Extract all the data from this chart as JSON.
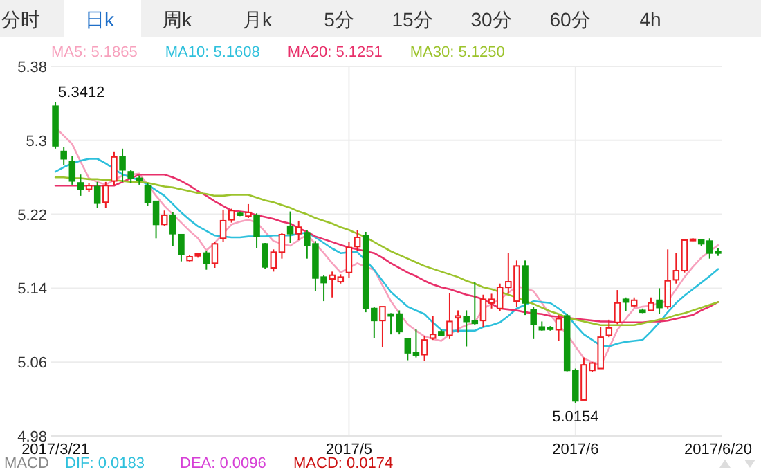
{
  "chart_data": {
    "type": "candlestick",
    "categories": [
      "2017/3/21",
      null,
      null,
      null,
      null,
      null,
      null,
      null,
      null,
      null,
      null,
      null,
      null,
      null,
      null,
      null,
      null,
      null,
      null,
      null,
      null,
      null,
      null,
      null,
      null,
      null,
      null,
      null,
      null,
      null,
      null,
      null,
      null,
      null,
      null,
      "2017/5",
      null,
      null,
      null,
      null,
      null,
      null,
      null,
      null,
      null,
      null,
      null,
      null,
      null,
      null,
      null,
      null,
      null,
      null,
      null,
      null,
      null,
      null,
      null,
      null,
      null,
      null,
      "2017/6",
      null,
      null,
      null,
      null,
      null,
      null,
      null,
      null,
      null,
      null,
      null,
      null,
      null,
      null,
      null,
      null,
      "2017/6/20"
    ],
    "ohlc": [
      [
        5.337,
        5.3412,
        5.291,
        5.294
      ],
      [
        5.288,
        5.293,
        5.273,
        5.28
      ],
      [
        5.277,
        5.283,
        5.252,
        5.256
      ],
      [
        5.254,
        5.263,
        5.24,
        5.247
      ],
      [
        5.247,
        5.254,
        5.244,
        5.251
      ],
      [
        5.25,
        5.255,
        5.227,
        5.232
      ],
      [
        5.233,
        5.255,
        5.227,
        5.251
      ],
      [
        5.256,
        5.288,
        5.251,
        5.282
      ],
      [
        5.282,
        5.291,
        5.255,
        5.268
      ],
      [
        5.266,
        5.268,
        5.254,
        5.259
      ],
      [
        5.259,
        5.262,
        5.252,
        5.257
      ],
      [
        5.251,
        5.254,
        5.229,
        5.233
      ],
      [
        5.234,
        5.234,
        5.194,
        5.209
      ],
      [
        5.209,
        5.224,
        5.207,
        5.219
      ],
      [
        5.219,
        5.222,
        5.186,
        5.199
      ],
      [
        5.198,
        5.198,
        5.169,
        5.177
      ],
      [
        5.17,
        5.176,
        5.169,
        5.174
      ],
      [
        5.175,
        5.178,
        5.173,
        5.177
      ],
      [
        5.178,
        5.18,
        5.16,
        5.167
      ],
      [
        5.167,
        5.19,
        5.162,
        5.188
      ],
      [
        5.194,
        5.225,
        5.19,
        5.213
      ],
      [
        5.214,
        5.226,
        5.211,
        5.224
      ],
      [
        5.221,
        5.223,
        5.218,
        5.219
      ],
      [
        5.218,
        5.231,
        5.216,
        5.222
      ],
      [
        5.219,
        5.221,
        5.183,
        5.196
      ],
      [
        5.188,
        5.189,
        5.161,
        5.163
      ],
      [
        5.162,
        5.182,
        5.158,
        5.179
      ],
      [
        5.179,
        5.2,
        5.172,
        5.198
      ],
      [
        5.207,
        5.223,
        5.189,
        5.199
      ],
      [
        5.199,
        5.213,
        5.192,
        5.206
      ],
      [
        5.2,
        5.203,
        5.172,
        5.186
      ],
      [
        5.188,
        5.191,
        5.137,
        5.151
      ],
      [
        5.152,
        5.154,
        5.126,
        5.146
      ],
      [
        5.15,
        5.158,
        5.13,
        5.154
      ],
      [
        5.147,
        5.155,
        5.145,
        5.152
      ],
      [
        5.157,
        5.19,
        5.151,
        5.184
      ],
      [
        5.185,
        5.203,
        5.18,
        5.195
      ],
      [
        5.197,
        5.201,
        5.114,
        5.118
      ],
      [
        5.118,
        5.12,
        5.086,
        5.105
      ],
      [
        5.105,
        5.12,
        5.076,
        5.12
      ],
      [
        5.112,
        5.113,
        5.09,
        5.11
      ],
      [
        5.112,
        5.116,
        5.09,
        5.093
      ],
      [
        5.085,
        5.085,
        5.062,
        5.07
      ],
      [
        5.07,
        5.096,
        5.065,
        5.067
      ],
      [
        5.068,
        5.088,
        5.061,
        5.084
      ],
      [
        5.086,
        5.11,
        5.084,
        5.09
      ],
      [
        5.093,
        5.095,
        5.088,
        5.089
      ],
      [
        5.089,
        5.135,
        5.085,
        5.104
      ],
      [
        5.108,
        5.116,
        5.092,
        5.11
      ],
      [
        5.109,
        5.116,
        5.077,
        5.104
      ],
      [
        5.105,
        5.147,
        5.1,
        5.102
      ],
      [
        5.105,
        5.133,
        5.098,
        5.128
      ],
      [
        5.124,
        5.134,
        5.118,
        5.128
      ],
      [
        5.118,
        5.145,
        5.115,
        5.141
      ],
      [
        5.141,
        5.178,
        5.134,
        5.147
      ],
      [
        5.126,
        5.17,
        5.12,
        5.164
      ],
      [
        5.164,
        5.17,
        5.111,
        5.124
      ],
      [
        5.117,
        5.12,
        5.085,
        5.101
      ],
      [
        5.098,
        5.104,
        5.094,
        5.095
      ],
      [
        5.097,
        5.099,
        5.094,
        5.096
      ],
      [
        5.095,
        5.111,
        5.083,
        5.107
      ],
      [
        5.11,
        5.112,
        5.05,
        5.051
      ],
      [
        5.051,
        5.053,
        5.0154,
        5.018
      ],
      [
        5.019,
        5.065,
        5.019,
        5.057
      ],
      [
        5.051,
        5.06,
        5.049,
        5.059
      ],
      [
        5.053,
        5.098,
        5.053,
        5.087
      ],
      [
        5.089,
        5.106,
        5.087,
        5.097
      ],
      [
        5.103,
        5.138,
        5.101,
        5.124
      ],
      [
        5.128,
        5.13,
        5.115,
        5.125
      ],
      [
        5.121,
        5.13,
        5.119,
        5.127
      ],
      [
        5.116,
        5.118,
        5.113,
        5.114
      ],
      [
        5.116,
        5.13,
        5.115,
        5.124
      ],
      [
        5.127,
        5.14,
        5.112,
        5.119
      ],
      [
        5.12,
        5.182,
        5.118,
        5.148
      ],
      [
        5.149,
        5.178,
        5.145,
        5.159
      ],
      [
        5.159,
        5.193,
        5.157,
        5.192
      ],
      [
        5.192,
        5.194,
        5.191,
        5.193
      ],
      [
        5.192,
        5.193,
        5.186,
        5.188
      ],
      [
        5.191,
        5.194,
        5.172,
        5.178
      ],
      [
        5.18,
        5.183,
        5.175,
        5.178
      ]
    ],
    "colors": [
      "#0e9a0e",
      "#0e9a0e",
      "#0e9a0e",
      "#0e9a0e",
      "#ee1d23",
      "#0e9a0e",
      "#ee1d23",
      "#ee1d23",
      "#0e9a0e",
      "#0e9a0e",
      "#0e9a0e",
      "#0e9a0e",
      "#0e9a0e",
      "#ee1d23",
      "#0e9a0e",
      "#0e9a0e",
      "#ee1d23",
      "#ee1d23",
      "#0e9a0e",
      "#ee1d23",
      "#ee1d23",
      "#ee1d23",
      "#0e9a0e",
      "#ee1d23",
      "#0e9a0e",
      "#0e9a0e",
      "#ee1d23",
      "#ee1d23",
      "#0e9a0e",
      "#ee1d23",
      "#0e9a0e",
      "#0e9a0e",
      "#0e9a0e",
      "#ee1d23",
      "#ee1d23",
      "#ee1d23",
      "#ee1d23",
      "#0e9a0e",
      "#0e9a0e",
      "#ee1d23",
      "#0e9a0e",
      "#0e9a0e",
      "#0e9a0e",
      "#0e9a0e",
      "#ee1d23",
      "#ee1d23",
      "#0e9a0e",
      "#ee1d23",
      "#ee1d23",
      "#0e9a0e",
      "#0e9a0e",
      "#ee1d23",
      "#ee1d23",
      "#ee1d23",
      "#ee1d23",
      "#ee1d23",
      "#0e9a0e",
      "#0e9a0e",
      "#0e9a0e",
      "#0e9a0e",
      "#ee1d23",
      "#0e9a0e",
      "#0e9a0e",
      "#ee1d23",
      "#ee1d23",
      "#ee1d23",
      "#ee1d23",
      "#ee1d23",
      "#0e9a0e",
      "#ee1d23",
      "#0e9a0e",
      "#ee1d23",
      "#0e9a0e",
      "#ee1d23",
      "#ee1d23",
      "#ee1d23",
      "#ee1d23",
      "#0e9a0e",
      "#0e9a0e",
      "#0e9a0e"
    ],
    "series": [
      {
        "name": "MA5: 5.1865",
        "type": "line",
        "color": "#f7a1bd",
        "values": [
          5.314,
          5.305,
          5.296,
          5.277,
          5.259,
          5.255,
          5.252,
          5.257,
          5.262,
          5.263,
          5.264,
          5.252,
          5.24,
          5.229,
          5.22,
          5.211,
          5.202,
          5.194,
          5.181,
          5.189,
          5.199,
          5.209,
          5.212,
          5.214,
          5.211,
          5.201,
          5.191,
          5.188,
          5.186,
          5.192,
          5.198,
          5.188,
          5.178,
          5.167,
          5.157,
          5.162,
          5.167,
          5.163,
          5.16,
          5.143,
          5.126,
          5.113,
          5.101,
          5.094,
          5.088,
          5.085,
          5.083,
          5.09,
          5.096,
          5.1,
          5.103,
          5.118,
          5.123,
          5.128,
          5.135,
          5.142,
          5.14,
          5.137,
          5.124,
          5.111,
          5.1,
          5.09,
          5.077,
          5.064,
          5.06,
          5.056,
          5.075,
          5.095,
          5.107,
          5.118,
          5.12,
          5.121,
          5.124,
          5.126,
          5.139,
          5.152,
          5.163,
          5.173,
          5.18,
          5.1865
        ]
      },
      {
        "name": "MA10: 5.1608",
        "type": "line",
        "color": "#2ec0dc",
        "values": [
          5.266,
          5.271,
          5.275,
          5.278,
          5.28,
          5.28,
          5.275,
          5.269,
          5.263,
          5.26,
          5.257,
          5.252,
          5.246,
          5.24,
          5.231,
          5.222,
          5.214,
          5.207,
          5.202,
          5.197,
          5.196,
          5.195,
          5.195,
          5.196,
          5.196,
          5.196,
          5.197,
          5.197,
          5.197,
          5.199,
          5.2,
          5.195,
          5.189,
          5.183,
          5.178,
          5.179,
          5.179,
          5.17,
          5.16,
          5.148,
          5.136,
          5.128,
          5.12,
          5.116,
          5.112,
          5.103,
          5.095,
          5.094,
          5.094,
          5.094,
          5.094,
          5.098,
          5.1,
          5.103,
          5.11,
          5.118,
          5.122,
          5.126,
          5.125,
          5.124,
          5.118,
          5.111,
          5.1,
          5.09,
          5.084,
          5.078,
          5.077,
          5.08,
          5.082,
          5.083,
          5.084,
          5.093,
          5.103,
          5.114,
          5.124,
          5.132,
          5.139,
          5.146,
          5.153,
          5.1608
        ]
      },
      {
        "name": "MA20: 5.1251",
        "type": "line",
        "color": "#e8306a",
        "values": [
          5.251,
          5.251,
          5.251,
          5.251,
          5.251,
          5.251,
          5.251,
          5.251,
          5.255,
          5.259,
          5.263,
          5.263,
          5.263,
          5.263,
          5.26,
          5.256,
          5.251,
          5.245,
          5.24,
          5.234,
          5.229,
          5.224,
          5.223,
          5.222,
          5.219,
          5.217,
          5.215,
          5.212,
          5.21,
          5.205,
          5.201,
          5.196,
          5.193,
          5.19,
          5.187,
          5.184,
          5.182,
          5.18,
          5.178,
          5.173,
          5.167,
          5.162,
          5.157,
          5.153,
          5.148,
          5.144,
          5.141,
          5.139,
          5.136,
          5.133,
          5.131,
          5.128,
          5.123,
          5.118,
          5.117,
          5.116,
          5.114,
          5.113,
          5.112,
          5.11,
          5.109,
          5.108,
          5.107,
          5.106,
          5.105,
          5.104,
          5.104,
          5.103,
          5.103,
          5.103,
          5.103,
          5.104,
          5.104,
          5.105,
          5.107,
          5.109,
          5.111,
          5.116,
          5.12,
          5.1251
        ]
      },
      {
        "name": "MA30: 5.1250",
        "type": "line",
        "color": "#9cc32c",
        "values": [
          5.26,
          5.26,
          5.259,
          5.259,
          5.258,
          5.258,
          5.257,
          5.257,
          5.256,
          5.255,
          5.255,
          5.254,
          5.252,
          5.25,
          5.249,
          5.247,
          5.245,
          5.243,
          5.242,
          5.24,
          5.24,
          5.241,
          5.241,
          5.241,
          5.238,
          5.235,
          5.233,
          5.23,
          5.227,
          5.223,
          5.22,
          5.216,
          5.213,
          5.21,
          5.206,
          5.203,
          5.199,
          5.195,
          5.19,
          5.185,
          5.18,
          5.176,
          5.172,
          5.168,
          5.164,
          5.161,
          5.158,
          5.155,
          5.152,
          5.148,
          5.145,
          5.141,
          5.139,
          5.136,
          5.133,
          5.13,
          5.126,
          5.123,
          5.119,
          5.115,
          5.112,
          5.108,
          5.106,
          5.104,
          5.102,
          5.1,
          5.1,
          5.1,
          5.1,
          5.1,
          5.102,
          5.104,
          5.106,
          5.108,
          5.111,
          5.113,
          5.116,
          5.119,
          5.122,
          5.125
        ]
      }
    ],
    "ylim": [
      4.98,
      5.38
    ],
    "yticks": [
      4.98,
      5.06,
      5.14,
      5.22,
      5.3,
      5.38
    ],
    "grid": true,
    "legend": "top left",
    "marker": "none",
    "line_style": "solid",
    "annotations": [
      "分时",
      "日k",
      "周k",
      "月k",
      "5分",
      "15分",
      "30分",
      "60分",
      "4h",
      "MACD",
      "DIF: 0.0183",
      "DEA: 0.0096",
      "MACD: 0.0174",
      {
        "text": "5.3412",
        "x": "2017/3/21",
        "y": 5.3412
      },
      {
        "text": "5.0154",
        "x": "2017/6",
        "y": 5.0154
      }
    ]
  }
}
